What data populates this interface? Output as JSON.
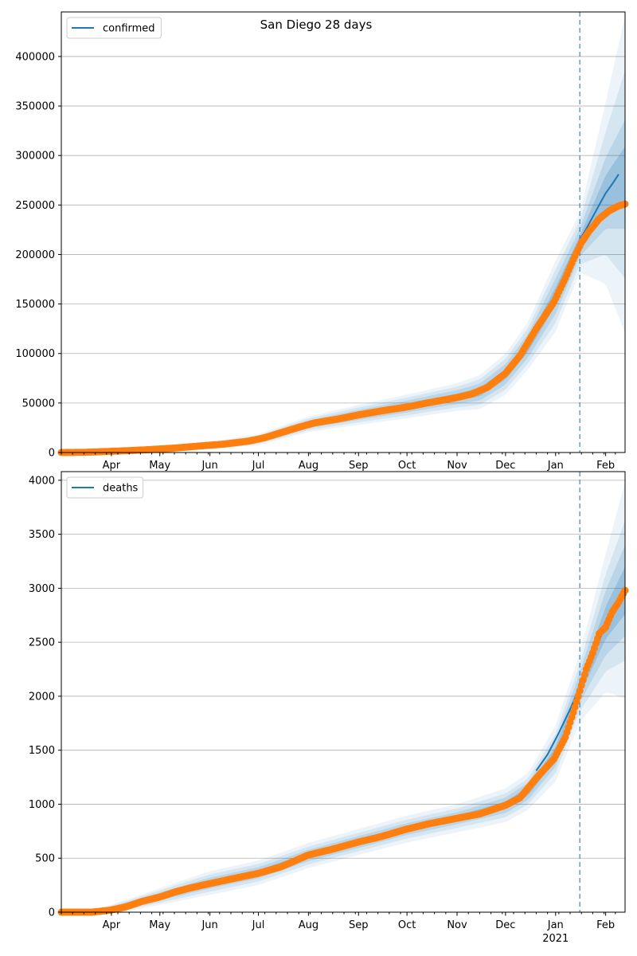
{
  "figure": {
    "title": "San Diego 28 days"
  },
  "chart_data": [
    {
      "type": "line",
      "legend": [
        "confirmed"
      ],
      "legend_position": "top-left",
      "grid": "horizontal",
      "x_axis": {
        "type": "date",
        "range": [
          "2020-03-01",
          "2021-02-13"
        ],
        "ticks": [
          {
            "date": "2020-04-01",
            "label": "Apr"
          },
          {
            "date": "2020-05-01",
            "label": "May"
          },
          {
            "date": "2020-06-01",
            "label": "Jun"
          },
          {
            "date": "2020-07-01",
            "label": "Jul"
          },
          {
            "date": "2020-08-01",
            "label": "Aug"
          },
          {
            "date": "2020-09-01",
            "label": "Sep"
          },
          {
            "date": "2020-10-01",
            "label": "Oct"
          },
          {
            "date": "2020-11-01",
            "label": "Nov"
          },
          {
            "date": "2020-12-01",
            "label": "Dec"
          },
          {
            "date": "2021-01-01",
            "label": "Jan"
          },
          {
            "date": "2021-02-01",
            "label": "Feb"
          }
        ],
        "year_label": {
          "date": "2021-01-01",
          "label": "2021"
        }
      },
      "y_axis": {
        "range": [
          0,
          445000
        ],
        "ticks": [
          0,
          50000,
          100000,
          150000,
          200000,
          250000,
          300000,
          350000,
          400000
        ]
      },
      "forecast_start": "2021-01-16",
      "series": [
        {
          "name": "confirmed",
          "kind": "model",
          "color": "#1f77b4",
          "points": [
            [
              "2021-01-16",
              215000
            ],
            [
              "2021-01-20",
              226000
            ],
            [
              "2021-01-24",
              238000
            ],
            [
              "2021-01-28",
              250000
            ],
            [
              "2021-02-01",
              262000
            ],
            [
              "2021-02-05",
              271000
            ],
            [
              "2021-02-09",
              281000
            ]
          ]
        },
        {
          "kind": "observed",
          "color": "#ff7f0e",
          "points": [
            [
              "2020-03-01",
              0
            ],
            [
              "2020-03-15",
              200
            ],
            [
              "2020-03-29",
              1000
            ],
            [
              "2020-04-10",
              1800
            ],
            [
              "2020-04-25",
              3000
            ],
            [
              "2020-05-10",
              4500
            ],
            [
              "2020-05-25",
              6500
            ],
            [
              "2020-06-10",
              8500
            ],
            [
              "2020-06-25",
              11500
            ],
            [
              "2020-07-05",
              15000
            ],
            [
              "2020-07-15",
              20000
            ],
            [
              "2020-07-25",
              25000
            ],
            [
              "2020-08-05",
              30000
            ],
            [
              "2020-08-20",
              34000
            ],
            [
              "2020-09-01",
              38000
            ],
            [
              "2020-09-15",
              42000
            ],
            [
              "2020-10-01",
              46000
            ],
            [
              "2020-10-15",
              50500
            ],
            [
              "2020-11-01",
              55500
            ],
            [
              "2020-11-10",
              59000
            ],
            [
              "2020-11-20",
              66000
            ],
            [
              "2020-12-01",
              80000
            ],
            [
              "2020-12-10",
              98000
            ],
            [
              "2020-12-20",
              125000
            ],
            [
              "2020-12-31",
              152000
            ],
            [
              "2021-01-07",
              176000
            ],
            [
              "2021-01-12",
              195000
            ],
            [
              "2021-01-17",
              212000
            ],
            [
              "2021-01-22",
              224000
            ],
            [
              "2021-01-28",
              236000
            ],
            [
              "2021-02-03",
              244000
            ],
            [
              "2021-02-09",
              249000
            ],
            [
              "2021-02-13",
              251000
            ]
          ]
        }
      ],
      "bands": {
        "center": [
          [
            "2020-03-01",
            0
          ],
          [
            "2020-04-01",
            1200
          ],
          [
            "2020-05-01",
            3800
          ],
          [
            "2020-06-01",
            7500
          ],
          [
            "2020-07-01",
            13000
          ],
          [
            "2020-07-15",
            20000
          ],
          [
            "2020-08-01",
            28500
          ],
          [
            "2020-09-01",
            38000
          ],
          [
            "2020-10-01",
            46500
          ],
          [
            "2020-11-01",
            56000
          ],
          [
            "2020-11-15",
            61000
          ],
          [
            "2020-12-01",
            79000
          ],
          [
            "2020-12-15",
            108000
          ],
          [
            "2021-01-01",
            158000
          ],
          [
            "2021-01-16",
            212000
          ],
          [
            "2021-02-01",
            262000
          ],
          [
            "2021-02-13",
            281000
          ]
        ],
        "half_widths": [
          [
            [
              "2020-03-01",
              0
            ],
            [
              "2020-06-01",
              900
            ],
            [
              "2020-09-01",
              2500
            ],
            [
              "2020-11-01",
              3500
            ],
            [
              "2020-12-15",
              6000
            ],
            [
              "2021-01-01",
              9000
            ],
            [
              "2021-01-16",
              7000
            ],
            [
              "2021-02-01",
              18000
            ],
            [
              "2021-02-13",
              28000
            ]
          ],
          [
            [
              "2020-03-01",
              0
            ],
            [
              "2020-06-01",
              1800
            ],
            [
              "2020-09-01",
              5000
            ],
            [
              "2020-11-01",
              7000
            ],
            [
              "2020-12-15",
              12000
            ],
            [
              "2021-01-01",
              18000
            ],
            [
              "2021-01-16",
              14000
            ],
            [
              "2021-02-01",
              36000
            ],
            [
              "2021-02-13",
              55000
            ]
          ],
          [
            [
              "2020-03-01",
              0
            ],
            [
              "2020-06-01",
              2700
            ],
            [
              "2020-09-01",
              7500
            ],
            [
              "2020-11-01",
              10500
            ],
            [
              "2020-12-15",
              18000
            ],
            [
              "2021-01-01",
              27000
            ],
            [
              "2021-01-16",
              22000
            ],
            [
              "2021-02-01",
              62000
            ],
            [
              "2021-02-13",
              105000
            ]
          ],
          [
            [
              "2020-03-01",
              0
            ],
            [
              "2020-06-01",
              3600
            ],
            [
              "2020-09-01",
              10000
            ],
            [
              "2020-11-01",
              14000
            ],
            [
              "2020-12-15",
              24000
            ],
            [
              "2021-01-01",
              36000
            ],
            [
              "2021-01-16",
              30000
            ],
            [
              "2021-02-01",
              92000
            ],
            [
              "2021-02-13",
              160000
            ]
          ]
        ]
      }
    },
    {
      "type": "line",
      "legend": [
        "deaths"
      ],
      "legend_position": "top-left",
      "grid": "horizontal",
      "x_axis": {
        "type": "date",
        "range": [
          "2020-03-01",
          "2021-02-13"
        ],
        "ticks": [
          {
            "date": "2020-04-01",
            "label": "Apr"
          },
          {
            "date": "2020-05-01",
            "label": "May"
          },
          {
            "date": "2020-06-01",
            "label": "Jun"
          },
          {
            "date": "2020-07-01",
            "label": "Jul"
          },
          {
            "date": "2020-08-01",
            "label": "Aug"
          },
          {
            "date": "2020-09-01",
            "label": "Sep"
          },
          {
            "date": "2020-10-01",
            "label": "Oct"
          },
          {
            "date": "2020-11-01",
            "label": "Nov"
          },
          {
            "date": "2020-12-01",
            "label": "Dec"
          },
          {
            "date": "2021-01-01",
            "label": "Jan"
          },
          {
            "date": "2021-02-01",
            "label": "Feb"
          }
        ],
        "year_label": {
          "date": "2021-01-01",
          "label": "2021"
        }
      },
      "y_axis": {
        "range": [
          0,
          4080
        ],
        "ticks": [
          0,
          500,
          1000,
          1500,
          2000,
          2500,
          3000,
          3500,
          4000
        ]
      },
      "forecast_start": "2021-01-16",
      "series": [
        {
          "name": "deaths",
          "kind": "model",
          "color": "#1f77b4",
          "points": [
            [
              "2020-12-20",
              1310
            ],
            [
              "2020-12-27",
              1460
            ],
            [
              "2021-01-03",
              1660
            ],
            [
              "2021-01-10",
              1880
            ],
            [
              "2021-01-16",
              2080
            ],
            [
              "2021-01-22",
              2300
            ],
            [
              "2021-01-28",
              2520
            ],
            [
              "2021-02-03",
              2720
            ],
            [
              "2021-02-08",
              2880
            ],
            [
              "2021-02-13",
              2980
            ]
          ]
        },
        {
          "kind": "observed",
          "color": "#ff7f0e",
          "points": [
            [
              "2020-03-01",
              0
            ],
            [
              "2020-03-20",
              0
            ],
            [
              "2020-04-01",
              20
            ],
            [
              "2020-04-10",
              50
            ],
            [
              "2020-04-20",
              100
            ],
            [
              "2020-05-01",
              140
            ],
            [
              "2020-05-10",
              185
            ],
            [
              "2020-05-20",
              225
            ],
            [
              "2020-06-01",
              265
            ],
            [
              "2020-06-15",
              310
            ],
            [
              "2020-07-01",
              360
            ],
            [
              "2020-07-15",
              420
            ],
            [
              "2020-08-01",
              530
            ],
            [
              "2020-08-15",
              580
            ],
            [
              "2020-09-01",
              650
            ],
            [
              "2020-09-15",
              700
            ],
            [
              "2020-10-01",
              770
            ],
            [
              "2020-10-15",
              820
            ],
            [
              "2020-11-01",
              870
            ],
            [
              "2020-11-15",
              910
            ],
            [
              "2020-12-01",
              990
            ],
            [
              "2020-12-10",
              1060
            ],
            [
              "2020-12-20",
              1240
            ],
            [
              "2020-12-31",
              1420
            ],
            [
              "2021-01-07",
              1620
            ],
            [
              "2021-01-12",
              1850
            ],
            [
              "2021-01-17",
              2100
            ],
            [
              "2021-01-20",
              2250
            ],
            [
              "2021-01-24",
              2400
            ],
            [
              "2021-01-28",
              2580
            ],
            [
              "2021-02-01",
              2640
            ],
            [
              "2021-02-05",
              2780
            ],
            [
              "2021-02-09",
              2870
            ],
            [
              "2021-02-13",
              2980
            ]
          ]
        }
      ],
      "bands": {
        "center": [
          [
            "2020-03-01",
            0
          ],
          [
            "2020-03-25",
            5
          ],
          [
            "2020-04-15",
            80
          ],
          [
            "2020-05-01",
            145
          ],
          [
            "2020-06-01",
            270
          ],
          [
            "2020-07-01",
            365
          ],
          [
            "2020-08-01",
            525
          ],
          [
            "2020-09-01",
            650
          ],
          [
            "2020-10-01",
            770
          ],
          [
            "2020-11-01",
            870
          ],
          [
            "2020-12-01",
            990
          ],
          [
            "2020-12-15",
            1120
          ],
          [
            "2021-01-01",
            1470
          ],
          [
            "2021-01-16",
            2080
          ],
          [
            "2021-02-01",
            2680
          ],
          [
            "2021-02-13",
            2980
          ]
        ],
        "half_widths": [
          [
            [
              "2020-03-01",
              0
            ],
            [
              "2020-04-15",
              15
            ],
            [
              "2020-06-01",
              25
            ],
            [
              "2020-09-01",
              25
            ],
            [
              "2020-11-01",
              25
            ],
            [
              "2020-12-15",
              40
            ],
            [
              "2021-01-01",
              60
            ],
            [
              "2021-01-16",
              70
            ],
            [
              "2021-02-01",
              150
            ],
            [
              "2021-02-13",
              220
            ]
          ],
          [
            [
              "2020-03-01",
              0
            ],
            [
              "2020-04-15",
              30
            ],
            [
              "2020-06-01",
              50
            ],
            [
              "2020-09-01",
              55
            ],
            [
              "2020-11-01",
              55
            ],
            [
              "2020-12-15",
              80
            ],
            [
              "2021-01-01",
              120
            ],
            [
              "2021-01-16",
              140
            ],
            [
              "2021-02-01",
              300
            ],
            [
              "2021-02-13",
              420
            ]
          ],
          [
            [
              "2020-03-01",
              0
            ],
            [
              "2020-04-15",
              45
            ],
            [
              "2020-06-01",
              80
            ],
            [
              "2020-09-01",
              85
            ],
            [
              "2020-11-01",
              90
            ],
            [
              "2020-12-15",
              120
            ],
            [
              "2021-01-01",
              180
            ],
            [
              "2021-01-16",
              220
            ],
            [
              "2021-02-01",
              450
            ],
            [
              "2021-02-13",
              650
            ]
          ],
          [
            [
              "2020-03-01",
              0
            ],
            [
              "2020-04-15",
              60
            ],
            [
              "2020-06-01",
              110
            ],
            [
              "2020-09-01",
              120
            ],
            [
              "2020-11-01",
              130
            ],
            [
              "2020-12-15",
              170
            ],
            [
              "2021-01-01",
              260
            ],
            [
              "2021-01-16",
              320
            ],
            [
              "2021-02-01",
              640
            ],
            [
              "2021-02-13",
              1000
            ]
          ]
        ]
      }
    }
  ]
}
